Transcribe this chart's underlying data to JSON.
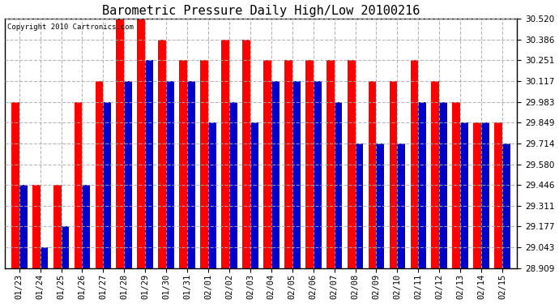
{
  "title": "Barometric Pressure Daily High/Low 20100216",
  "copyright": "Copyright 2010 Cartronics.com",
  "dates": [
    "01/23",
    "01/24",
    "01/25",
    "01/26",
    "01/27",
    "01/28",
    "01/29",
    "01/30",
    "01/31",
    "02/01",
    "02/02",
    "02/03",
    "02/04",
    "02/05",
    "02/06",
    "02/07",
    "02/08",
    "02/09",
    "02/10",
    "02/11",
    "02/12",
    "02/13",
    "02/14",
    "02/15"
  ],
  "highs": [
    29.983,
    29.446,
    29.446,
    29.983,
    30.117,
    30.52,
    30.52,
    30.386,
    30.251,
    30.251,
    30.386,
    30.386,
    30.251,
    30.251,
    30.251,
    30.251,
    30.251,
    30.117,
    30.117,
    30.251,
    30.117,
    29.983,
    29.849,
    29.849
  ],
  "lows": [
    29.446,
    29.043,
    29.177,
    29.446,
    29.983,
    30.117,
    30.251,
    30.117,
    30.117,
    29.849,
    29.983,
    29.849,
    30.117,
    30.117,
    30.117,
    29.983,
    29.714,
    29.714,
    29.714,
    29.983,
    29.983,
    29.849,
    29.849,
    29.714
  ],
  "high_color": "#ff0000",
  "low_color": "#0000cc",
  "bg_color": "#ffffff",
  "plot_bg_color": "#ffffff",
  "grid_color": "#aaaaaa",
  "title_fontsize": 11,
  "yticks": [
    28.909,
    29.043,
    29.177,
    29.311,
    29.446,
    29.58,
    29.714,
    29.849,
    29.983,
    30.117,
    30.251,
    30.386,
    30.52
  ],
  "ymin": 28.909,
  "ymax": 30.52,
  "bar_width": 0.38
}
